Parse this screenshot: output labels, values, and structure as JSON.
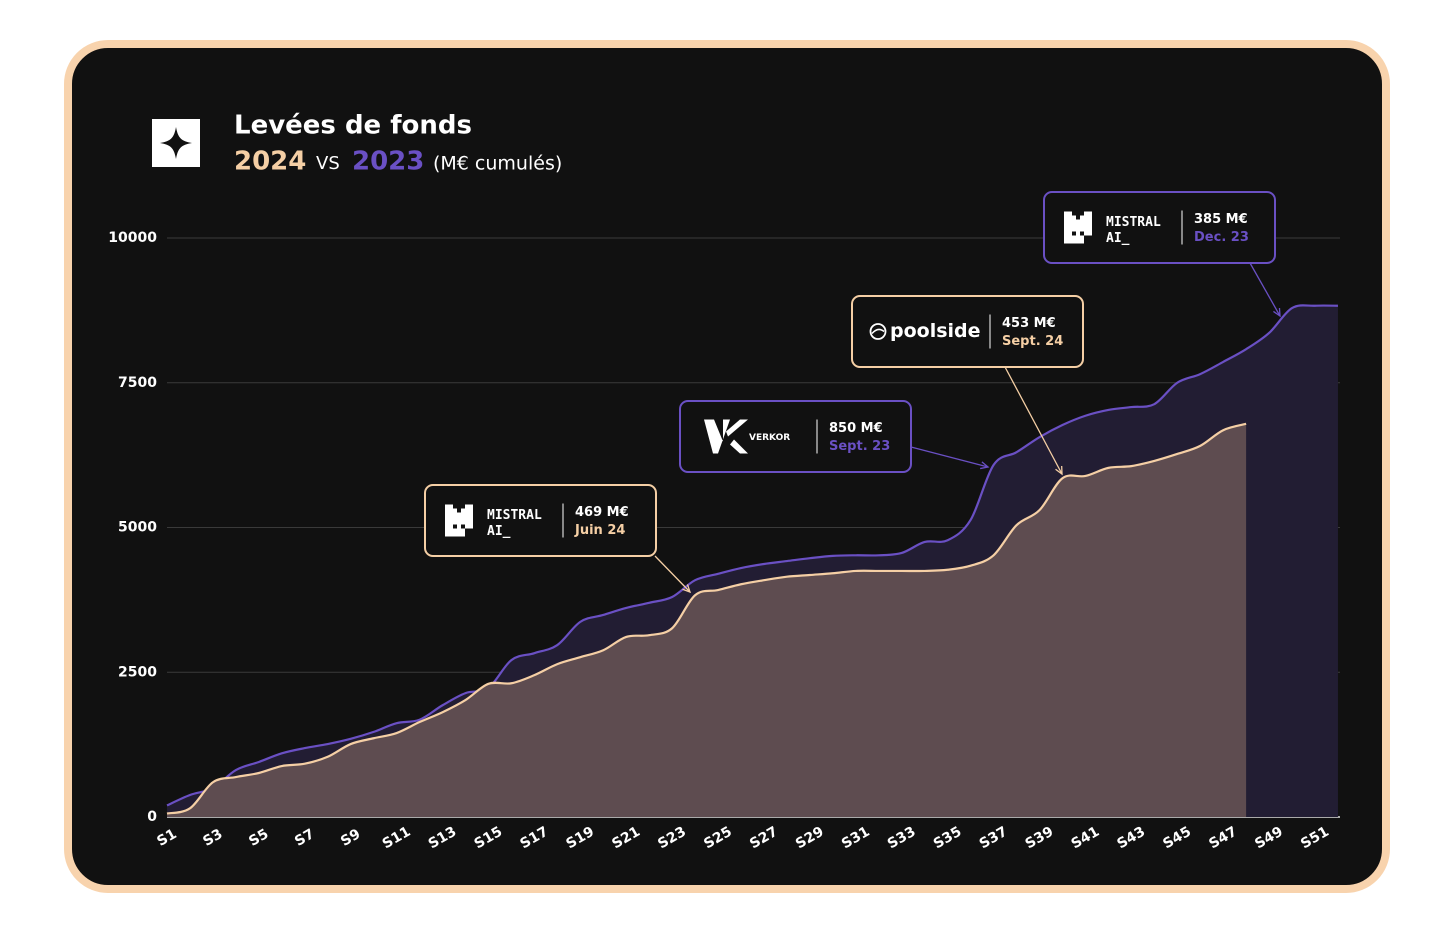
{
  "chart_data": {
    "type": "area",
    "title": "Levées de fonds",
    "subtitle_between": "VS",
    "unit_note": "(M€ cumulés)",
    "categories": [
      "S1",
      null,
      "S3",
      null,
      "S5",
      null,
      "S7",
      null,
      "S9",
      null,
      "S11",
      null,
      "S13",
      null,
      "S15",
      null,
      "S17",
      null,
      "S19",
      null,
      "S21",
      null,
      "S23",
      null,
      "S25",
      null,
      "S27",
      null,
      "S29",
      null,
      "S31",
      null,
      "S33",
      null,
      "S35",
      null,
      "S37",
      null,
      "S39",
      null,
      "S41",
      null,
      "S43",
      null,
      "S45",
      null,
      "S47",
      null,
      "S49",
      null,
      "S51",
      null
    ],
    "series": [
      {
        "name": "2023",
        "color": "#6a50c4",
        "fill": "#221d33",
        "values": [
          200,
          380,
          500,
          810,
          950,
          1100,
          1190,
          1260,
          1350,
          1470,
          1620,
          1680,
          1930,
          2140,
          2230,
          2710,
          2830,
          2970,
          3370,
          3490,
          3610,
          3700,
          3800,
          4090,
          4200,
          4300,
          4370,
          4420,
          4470,
          4510,
          4520,
          4520,
          4560,
          4750,
          4780,
          5130,
          6080,
          6300,
          6560,
          6770,
          6930,
          7030,
          7080,
          7130,
          7500,
          7650,
          7860,
          8080,
          8360,
          8790,
          8830,
          8830
        ]
      },
      {
        "name": "2024",
        "color": "#f5cfa5",
        "fill": "#5e4c50",
        "values": [
          60,
          150,
          600,
          690,
          760,
          880,
          920,
          1040,
          1260,
          1360,
          1450,
          1640,
          1810,
          2020,
          2300,
          2310,
          2450,
          2640,
          2760,
          2880,
          3110,
          3140,
          3260,
          3830,
          3920,
          4020,
          4090,
          4150,
          4180,
          4210,
          4250,
          4250,
          4250,
          4250,
          4270,
          4340,
          4520,
          5040,
          5300,
          5850,
          5890,
          6030,
          6060,
          6150,
          6270,
          6410,
          6680,
          6790,
          null,
          null,
          null,
          null
        ]
      }
    ],
    "ylim": [
      0,
      10000
    ],
    "yticks": [
      0,
      2500,
      5000,
      7500,
      10000
    ],
    "grid": true,
    "annotations": [
      {
        "logo": [
          "MISTRAL",
          "AI_"
        ],
        "amount": "469 M€",
        "date": "Juin 24",
        "color": "#f5cfa5"
      },
      {
        "logo": [
          "VERKOR"
        ],
        "amount": "850 M€",
        "date": "Sept. 23",
        "color": "#6a50c4"
      },
      {
        "logo": [
          "poolside"
        ],
        "amount": "453 M€",
        "date": "Sept. 24",
        "color": "#f5cfa5"
      },
      {
        "logo": [
          "MISTRAL",
          "AI_"
        ],
        "amount": "385 M€",
        "date": "Dec. 23",
        "color": "#6a50c4"
      }
    ]
  }
}
